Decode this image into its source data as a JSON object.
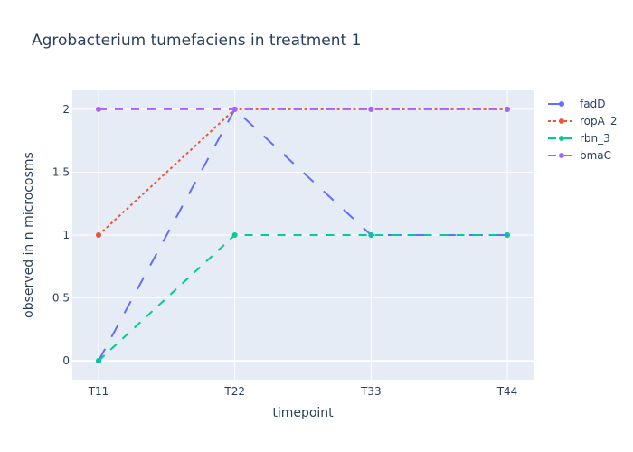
{
  "chart_data": {
    "type": "line",
    "title": "Agrobacterium tumefaciens in treatment 1",
    "xlabel": "timepoint",
    "ylabel": "observed in n microcosms",
    "categories": [
      "T11",
      "T22",
      "T33",
      "T44"
    ],
    "ylim": [
      -0.15,
      2.15
    ],
    "yticks": [
      0,
      0.5,
      1,
      1.5,
      2
    ],
    "ytick_labels": [
      "0",
      "0.5",
      "1",
      "1.5",
      "2"
    ],
    "grid": true,
    "legend_position": "right",
    "series": [
      {
        "name": "fadD",
        "values": [
          0,
          2,
          1,
          1
        ],
        "color": "#636efa",
        "dash": "long-dash"
      },
      {
        "name": "ropA_2",
        "values": [
          1,
          2,
          2,
          2
        ],
        "color": "#ef553b",
        "dash": "dot"
      },
      {
        "name": "rbn_3",
        "values": [
          0,
          1,
          1,
          1
        ],
        "color": "#00cc96",
        "dash": "dash"
      },
      {
        "name": "bmaC",
        "values": [
          2,
          2,
          2,
          2
        ],
        "color": "#ab63fa",
        "dash": "dash"
      }
    ]
  }
}
